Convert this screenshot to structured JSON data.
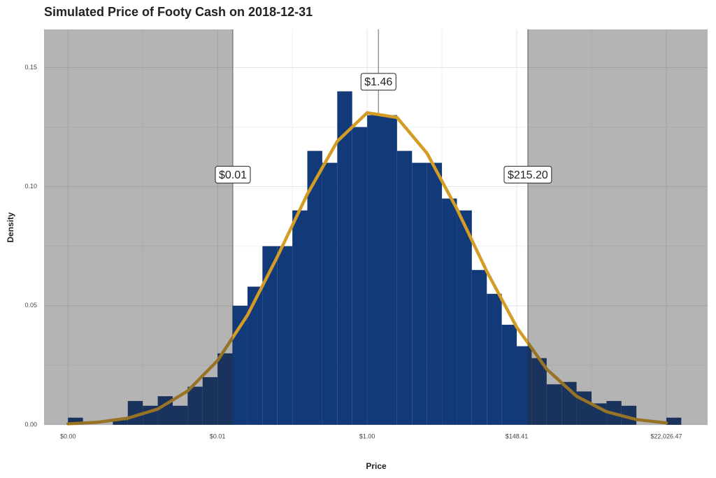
{
  "chart_data": {
    "type": "histogram",
    "title": "Simulated Price of Footy Cash on 2018-12-31",
    "x_label": "Price",
    "y_label": "Density",
    "bins": [
      -10,
      -9.5,
      -9,
      -8.5,
      -8,
      -7.5,
      -7,
      -6.5,
      -6,
      -5.5,
      -5,
      -4.5,
      -4,
      -3.5,
      -3,
      -2.5,
      -2,
      -1.5,
      -1,
      -0.5,
      0,
      0.5,
      1,
      1.5,
      2,
      2.5,
      3,
      3.5,
      4,
      4.5,
      5,
      5.5,
      6,
      6.5,
      7,
      7.5,
      8,
      8.5,
      9,
      9.5,
      10,
      10.5
    ],
    "counts": [
      0.003,
      0,
      0,
      0.002,
      0.01,
      0.008,
      0.012,
      0.008,
      0.016,
      0.02,
      0.03,
      0.05,
      0.058,
      0.075,
      0.075,
      0.09,
      0.115,
      0.11,
      0.14,
      0.125,
      0.13,
      0.13,
      0.115,
      0.11,
      0.11,
      0.095,
      0.09,
      0.065,
      0.055,
      0.042,
      0.033,
      0.028,
      0.017,
      0.018,
      0.014,
      0.009,
      0.01,
      0.008,
      0,
      0,
      0.003
    ],
    "color": "#133a78",
    "density_curve": {
      "color": "#d39c25",
      "x": [
        -10,
        -9,
        -8,
        -7,
        -6,
        -5,
        -4,
        -3,
        -2,
        -1,
        0,
        1,
        2,
        3,
        4,
        5,
        6,
        7,
        8,
        9,
        10
      ],
      "values": [
        0.0004,
        0.0011,
        0.0028,
        0.0066,
        0.0142,
        0.027,
        0.046,
        0.0706,
        0.0968,
        0.119,
        0.131,
        0.129,
        0.114,
        0.0906,
        0.0644,
        0.041,
        0.0234,
        0.012,
        0.0055,
        0.0022,
        0.0008
      ]
    },
    "annotations": [
      {
        "label": "$0.01",
        "x": -4.49,
        "y": 0.105
      },
      {
        "label": "$1.46",
        "x": 0.378,
        "y": 0.144
      },
      {
        "label": "$215.20",
        "x": 5.371,
        "y": 0.105
      }
    ],
    "xlim": [
      -10.8,
      11.38
    ],
    "ylim": [
      0,
      0.166
    ],
    "xticks": [
      {
        "value": -10,
        "label": "$0.00"
      },
      {
        "value": -5,
        "label": "$0.01"
      },
      {
        "value": 0,
        "label": "$1.00"
      },
      {
        "value": 5,
        "label": "$148.41"
      },
      {
        "value": 10,
        "label": "$22,026.47"
      }
    ],
    "yticks": [
      {
        "value": 0,
        "label": "0.00"
      },
      {
        "value": 0.05,
        "label": "0.05"
      },
      {
        "value": 0.1,
        "label": "0.10"
      },
      {
        "value": 0.15,
        "label": "0.15"
      }
    ],
    "grid": true
  }
}
